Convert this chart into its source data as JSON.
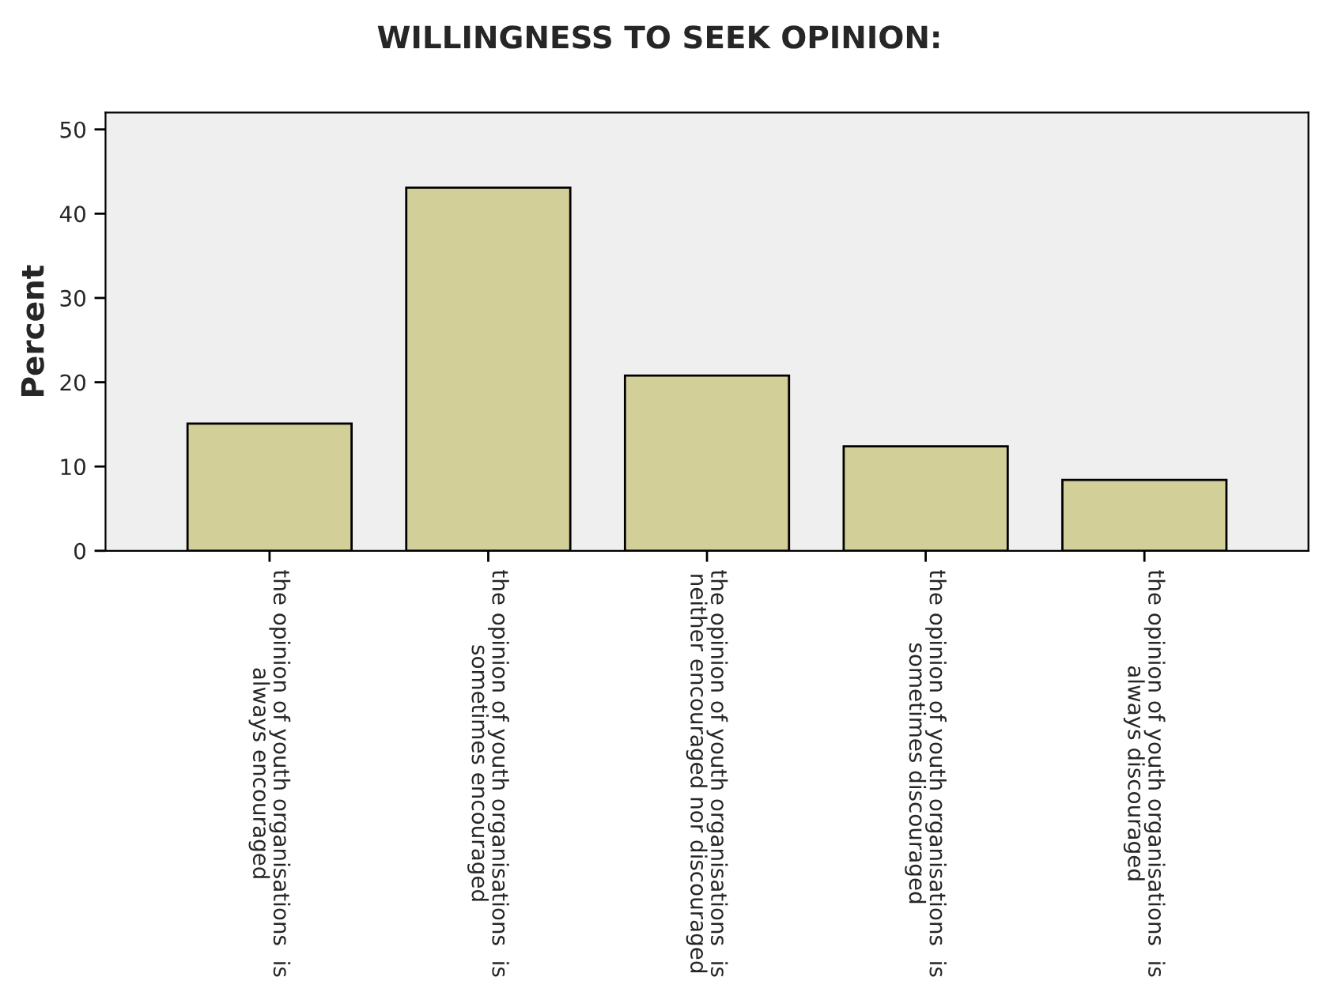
{
  "chart_data": {
    "type": "bar",
    "title": "WILLINGNESS TO SEEK OPINION:",
    "ylabel": "Percent",
    "categories": [
      "the opinion of youth organisations  is\nalways encouraged",
      "the opinion of youth organisations  is\nsometimes encouraged",
      "the opinion of youth organisations  is\nneither encouraged nor discouraged",
      "the opinion of youth organisations  is\nsometimes discouraged",
      "the opinion of youth organisations  is\nalways discouraged"
    ],
    "values": [
      15.1,
      43.1,
      20.8,
      12.4,
      8.4
    ],
    "color": "#d3cf99",
    "ylim": [
      0,
      52
    ],
    "yticks": [
      0,
      10,
      20,
      30,
      40,
      50
    ],
    "grid": false,
    "legend": false
  }
}
